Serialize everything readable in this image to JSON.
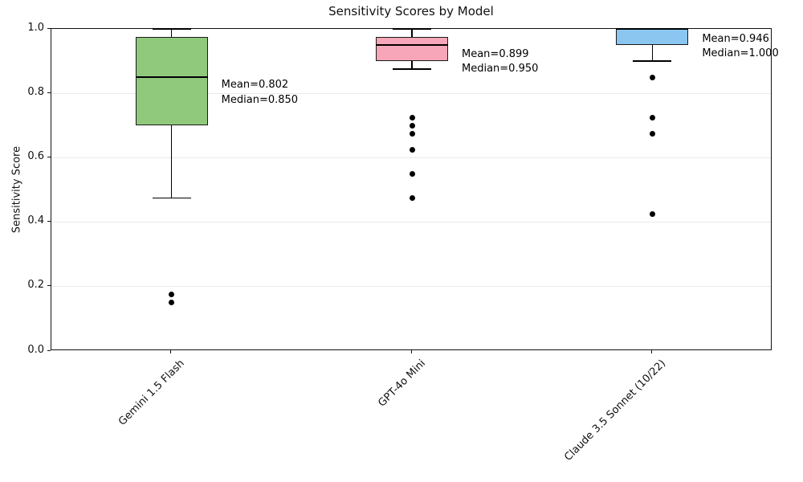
{
  "chart_data": {
    "type": "box",
    "title": "Sensitivity Scores by Model",
    "xlabel": "",
    "ylabel": "Sensitivity Score",
    "ylim": [
      0.0,
      1.0
    ],
    "ytick_labels": [
      "0.0",
      "0.2",
      "0.4",
      "0.6",
      "0.8",
      "1.0"
    ],
    "grid": "horizontal-light",
    "gridline_color": "#e9e9e9",
    "categories": [
      "Gemini 1.5 Flash",
      "GPT-4o Mini",
      "Claude 3.5 Sonnet (10/22)"
    ],
    "series": [
      {
        "label": "Gemini 1.5 Flash",
        "box_color": "#90c97c",
        "whisker_low": 0.475,
        "q1": 0.7,
        "median": 0.85,
        "q3": 0.975,
        "whisker_high": 1.0,
        "mean": 0.802,
        "outliers": [
          0.175,
          0.15
        ],
        "annotation_lines": [
          "Mean=0.802",
          "Median=0.850"
        ]
      },
      {
        "label": "GPT-4o Mini",
        "box_color": "#f6a6b8",
        "whisker_low": 0.875,
        "q1": 0.9,
        "median": 0.95,
        "q3": 0.975,
        "whisker_high": 1.0,
        "mean": 0.899,
        "outliers": [
          0.725,
          0.7,
          0.675,
          0.625,
          0.55,
          0.475
        ],
        "annotation_lines": [
          "Mean=0.899",
          "Median=0.950"
        ]
      },
      {
        "label": "Claude 3.5 Sonnet (10/22)",
        "box_color": "#8ac6f0",
        "whisker_low": 0.9,
        "q1": 0.95,
        "median": 1.0,
        "q3": 1.0,
        "whisker_high": 1.0,
        "mean": 0.946,
        "outliers": [
          0.85,
          0.725,
          0.675,
          0.425
        ],
        "annotation_lines": [
          "Mean=0.946",
          "Median=1.000"
        ]
      }
    ]
  }
}
